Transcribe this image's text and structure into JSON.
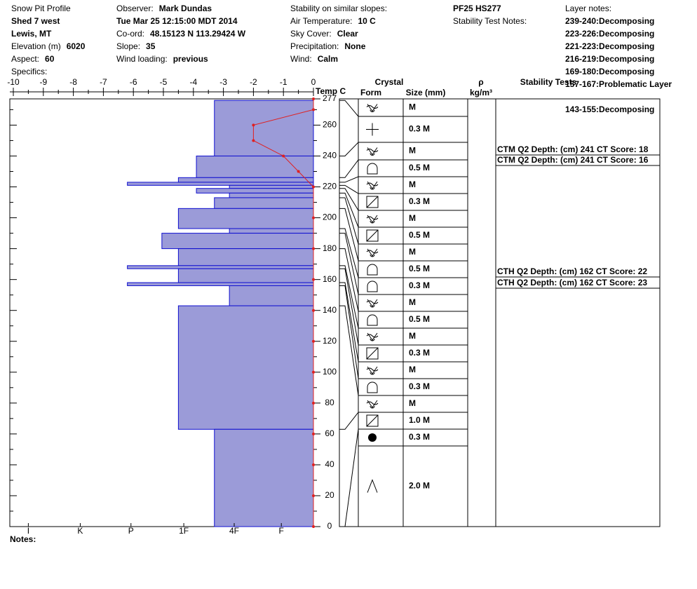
{
  "header": {
    "columns": [
      [
        {
          "label": "Snow Pit Profile"
        },
        {
          "value": "Shed 7 west"
        },
        {
          "value": "Lewis, MT"
        },
        {
          "label": "Elevation (m)",
          "value": "6020"
        },
        {
          "label": "Aspect:",
          "value": "60"
        },
        {
          "label": "Specifics:"
        }
      ],
      [
        {
          "label": "Observer:",
          "value": "Mark Dundas"
        },
        {
          "value": "Tue Mar 25 12:15:00 MDT 2014"
        },
        {
          "label": "Co-ord:",
          "value": "48.15123 N 113.29424 W"
        },
        {
          "label": "Slope:",
          "value": "35"
        },
        {
          "label": "Wind loading:",
          "value": "previous"
        }
      ],
      [
        {
          "label": "Stability on similar slopes:"
        },
        {
          "label": "Air Temperature:",
          "value": "10 C"
        },
        {
          "label": "Sky Cover:",
          "value": "Clear"
        },
        {
          "label": "Precipitation:",
          "value": "None"
        },
        {
          "label": "Wind:",
          "value": "Calm"
        }
      ],
      [
        {
          "value": "PF25 HS277"
        },
        {
          "label": "Stability Test Notes:"
        }
      ]
    ]
  },
  "layer_notes": {
    "title": "Layer notes:",
    "items": [
      {
        "range": "239-240:",
        "note": "Decomposing"
      },
      {
        "range": "223-226:",
        "note": "Decomposing"
      },
      {
        "range": "221-223:",
        "note": "Decomposing"
      },
      {
        "range": "216-219:",
        "note": "Decomposing"
      },
      {
        "range": "169-180:",
        "note": "Decomposing"
      },
      {
        "range": "157-167:",
        "note": "Problematic Layer"
      },
      {
        "range": "143-155:",
        "note": "Decomposing"
      }
    ]
  },
  "table_headers": {
    "crystal": "Crystal",
    "form": "Form",
    "size": "Size (mm)",
    "rho": "ρ",
    "density_unit": "kg/m³",
    "stability": "Stability Tests"
  },
  "stability_tests": [
    "CTM Q2 Depth: (cm) 241 CT Score: 18",
    "CTM Q2 Depth: (cm) 241 CT Score: 16",
    "CTH Q2 Depth: (cm) 162 CT Score: 22",
    "CTH Q2 Depth: (cm) 162 CT Score: 23"
  ],
  "notes_label": "Notes:",
  "chart_data": {
    "type": "snowpit",
    "ylim": [
      0,
      277
    ],
    "yticks": [
      0,
      20,
      40,
      60,
      80,
      100,
      120,
      140,
      160,
      180,
      200,
      220,
      240,
      260,
      277
    ],
    "temperature": {
      "label": "Temp C",
      "color": "#e02020",
      "xlim": [
        -10,
        0
      ],
      "xticks": [
        -10,
        -9,
        -8,
        -7,
        -6,
        -5,
        -4,
        -3,
        -2,
        -1,
        0
      ],
      "heights": [
        277,
        270,
        260,
        250,
        240,
        230,
        220,
        200,
        180,
        160,
        140,
        120,
        100,
        80,
        60,
        40,
        20,
        0
      ],
      "values": [
        0,
        0,
        -2,
        -2,
        -1,
        -0.5,
        0,
        0,
        0,
        0,
        0,
        0,
        0,
        0,
        0,
        0,
        0,
        0
      ]
    },
    "hardness": {
      "color": "#9b9bd8",
      "edge": "#1010d0",
      "xlim": [
        0,
        10
      ],
      "xticks": [
        {
          "value": 9.5,
          "label": "I"
        },
        {
          "value": 7.77,
          "label": "K"
        },
        {
          "value": 6.08,
          "label": "P"
        },
        {
          "value": 4.32,
          "label": "1F"
        },
        {
          "value": 2.64,
          "label": "4F"
        },
        {
          "value": 1.07,
          "label": "F"
        }
      ],
      "layers": [
        {
          "top": 276,
          "bottom": 240,
          "value": 3.3
        },
        {
          "top": 240,
          "bottom": 226,
          "value": 3.9
        },
        {
          "top": 226,
          "bottom": 223,
          "value": 4.5
        },
        {
          "top": 223,
          "bottom": 221,
          "value": 6.2
        },
        {
          "top": 221,
          "bottom": 219,
          "value": 2.8
        },
        {
          "top": 219,
          "bottom": 216,
          "value": 3.9
        },
        {
          "top": 216,
          "bottom": 213,
          "value": 2.8
        },
        {
          "top": 213,
          "bottom": 206,
          "value": 3.3
        },
        {
          "top": 206,
          "bottom": 193,
          "value": 4.5
        },
        {
          "top": 193,
          "bottom": 190,
          "value": 2.8
        },
        {
          "top": 190,
          "bottom": 180,
          "value": 5.05
        },
        {
          "top": 180,
          "bottom": 169,
          "value": 4.5
        },
        {
          "top": 169,
          "bottom": 167,
          "value": 6.2
        },
        {
          "top": 167,
          "bottom": 158,
          "value": 4.5
        },
        {
          "top": 158,
          "bottom": 156,
          "value": 6.2
        },
        {
          "top": 156,
          "bottom": 143,
          "value": 2.8
        },
        {
          "top": 143,
          "bottom": 63,
          "value": 4.5
        },
        {
          "top": 63,
          "bottom": 0,
          "value": 3.3
        }
      ]
    },
    "crystals": [
      {
        "form": "DF",
        "size": "M"
      },
      {
        "form": "PP",
        "size": "0.3 M"
      },
      {
        "form": "DF",
        "size": "M"
      },
      {
        "form": "RG",
        "size": "0.5 M"
      },
      {
        "form": "DF",
        "size": "M"
      },
      {
        "form": "FC",
        "size": "0.3 M"
      },
      {
        "form": "DF",
        "size": "M"
      },
      {
        "form": "FC",
        "size": "0.5 M"
      },
      {
        "form": "DF",
        "size": "M"
      },
      {
        "form": "RG",
        "size": "0.5 M"
      },
      {
        "form": "RG",
        "size": "0.3 M"
      },
      {
        "form": "DF",
        "size": "M"
      },
      {
        "form": "RG",
        "size": "0.5 M"
      },
      {
        "form": "DF",
        "size": "M"
      },
      {
        "form": "FC",
        "size": "0.3 M"
      },
      {
        "form": "DF",
        "size": "M"
      },
      {
        "form": "RG",
        "size": "0.3 M"
      },
      {
        "form": "DF",
        "size": "M"
      },
      {
        "form": "FC",
        "size": "1.0 M"
      },
      {
        "form": "IF",
        "size": "0.3 M"
      },
      {
        "form": "DH",
        "size": "2.0 M"
      }
    ]
  }
}
